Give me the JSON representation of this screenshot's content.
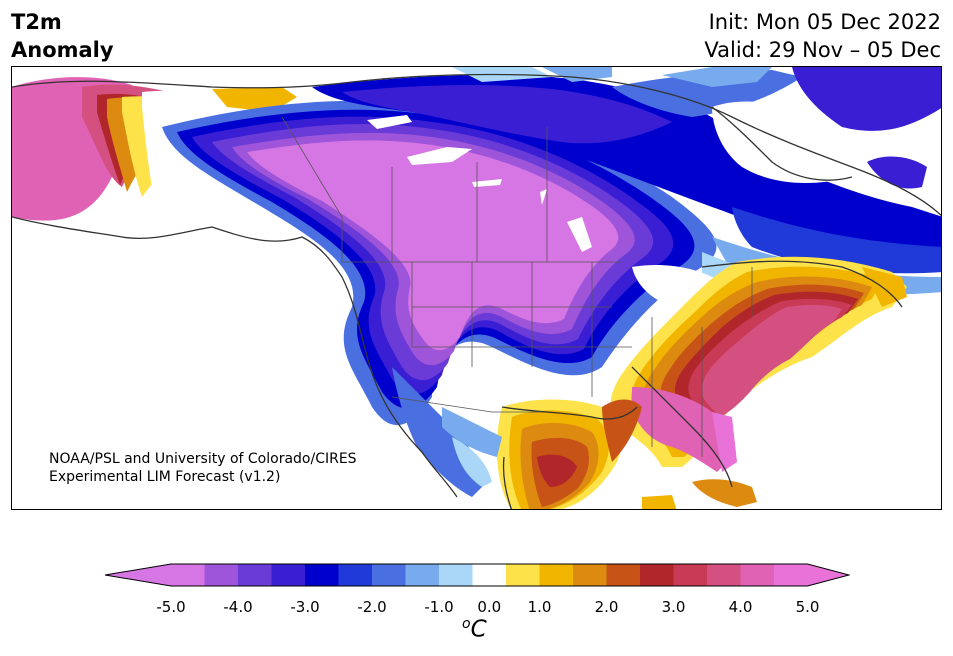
{
  "title": {
    "variable": "T2m",
    "subtitle": "Anomaly",
    "init": "Init: Mon 05 Dec 2022",
    "valid": "Valid: 29 Nov – 05 Dec"
  },
  "credit": {
    "line1": "NOAA/PSL and University of Colorado/CIRES",
    "line2": "Experimental LIM Forecast (v1.2)"
  },
  "colorbar": {
    "levels": [
      -5.0,
      -4.5,
      -4.0,
      -3.5,
      -3.0,
      -2.5,
      -2.0,
      -1.5,
      -1.0,
      -0.5,
      0.5,
      1.0,
      1.5,
      2.0,
      2.5,
      3.0,
      3.5,
      4.0,
      4.5,
      5.0
    ],
    "colors": [
      "#d676e4",
      "#9f55d9",
      "#6a3bd6",
      "#3a1ed4",
      "#0000cc",
      "#1f3ad8",
      "#4a6fe0",
      "#78aaee",
      "#aad7f7",
      "#ffffff",
      "#fde24a",
      "#f1b500",
      "#dd8a10",
      "#c75317",
      "#b0262a",
      "#c83a55",
      "#d45080",
      "#e062b4",
      "#e872d8"
    ],
    "under_color": "#d676e4",
    "over_color": "#e872d8",
    "tick_labels": [
      "-5.0",
      "-4.0",
      "-3.0",
      "-2.0",
      "-1.0",
      "0.0",
      "1.0",
      "2.0",
      "3.0",
      "4.0",
      "5.0"
    ],
    "unit_base": "C",
    "unit_sup": "o"
  }
}
